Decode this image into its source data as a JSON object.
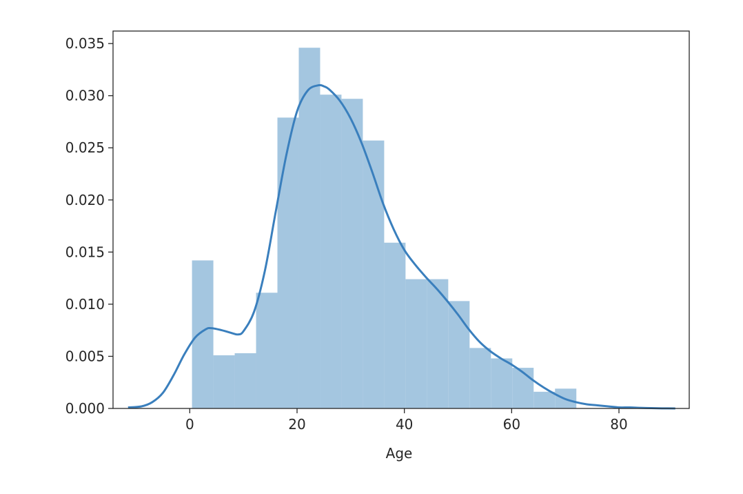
{
  "chart_data": {
    "type": "bar",
    "title": "",
    "xlabel": "Age",
    "ylabel": "",
    "xlim": [
      -14.3,
      93.1
    ],
    "ylim": [
      0,
      0.0362
    ],
    "x_ticks": [
      {
        "value": 0,
        "label": "0"
      },
      {
        "value": 20,
        "label": "20"
      },
      {
        "value": 40,
        "label": "40"
      },
      {
        "value": 60,
        "label": "60"
      },
      {
        "value": 80,
        "label": "80"
      }
    ],
    "y_ticks": [
      {
        "value": 0.0,
        "label": "0.000"
      },
      {
        "value": 0.005,
        "label": "0.005"
      },
      {
        "value": 0.01,
        "label": "0.010"
      },
      {
        "value": 0.015,
        "label": "0.015"
      },
      {
        "value": 0.02,
        "label": "0.020"
      },
      {
        "value": 0.025,
        "label": "0.025"
      },
      {
        "value": 0.03,
        "label": "0.030"
      },
      {
        "value": 0.035,
        "label": "0.035"
      }
    ],
    "grid": false,
    "legend": "none",
    "bar_color": "#a4c6e0",
    "line_color": "#3a7fbd",
    "histogram": {
      "bin_edges": [
        0.42,
        4.4,
        8.38,
        12.36,
        16.34,
        20.32,
        24.3,
        28.28,
        32.26,
        36.24,
        40.22,
        44.2,
        48.18,
        52.16,
        56.14,
        60.12,
        64.1,
        68.08,
        72.06
      ],
      "densities": [
        0.0142,
        0.0051,
        0.0053,
        0.0111,
        0.0279,
        0.0346,
        0.0301,
        0.0297,
        0.0257,
        0.0159,
        0.0124,
        0.0124,
        0.0103,
        0.0058,
        0.0048,
        0.0039,
        0.0016,
        0.0019
      ]
    },
    "kde": {
      "x": [
        -11.5,
        -9,
        -7,
        -5,
        -3,
        -1,
        1,
        3,
        4,
        6,
        8,
        9,
        10,
        12,
        14,
        16,
        18,
        20,
        22,
        24,
        25,
        26,
        28,
        30,
        32,
        34,
        36,
        38,
        40,
        42,
        44,
        46,
        48,
        50,
        52,
        54,
        56,
        58,
        60,
        62,
        64,
        66,
        68,
        70,
        72,
        74,
        76,
        78,
        80,
        82,
        84,
        86,
        88,
        90.5
      ],
      "y": [
        0.0001,
        0.0002,
        0.0006,
        0.0015,
        0.0032,
        0.0052,
        0.0068,
        0.0076,
        0.0077,
        0.0075,
        0.0072,
        0.0071,
        0.0074,
        0.0093,
        0.0132,
        0.0188,
        0.0243,
        0.0285,
        0.0305,
        0.031,
        0.0309,
        0.0306,
        0.0295,
        0.0278,
        0.0255,
        0.0227,
        0.0197,
        0.0172,
        0.0152,
        0.0138,
        0.0126,
        0.0115,
        0.0103,
        0.009,
        0.0076,
        0.0064,
        0.0055,
        0.0048,
        0.0042,
        0.0035,
        0.0027,
        0.002,
        0.0014,
        0.0009,
        0.0006,
        0.0004,
        0.0003,
        0.0002,
        0.0001,
        0.0001,
        6e-05,
        3e-05,
        1e-05,
        0.0
      ]
    }
  }
}
